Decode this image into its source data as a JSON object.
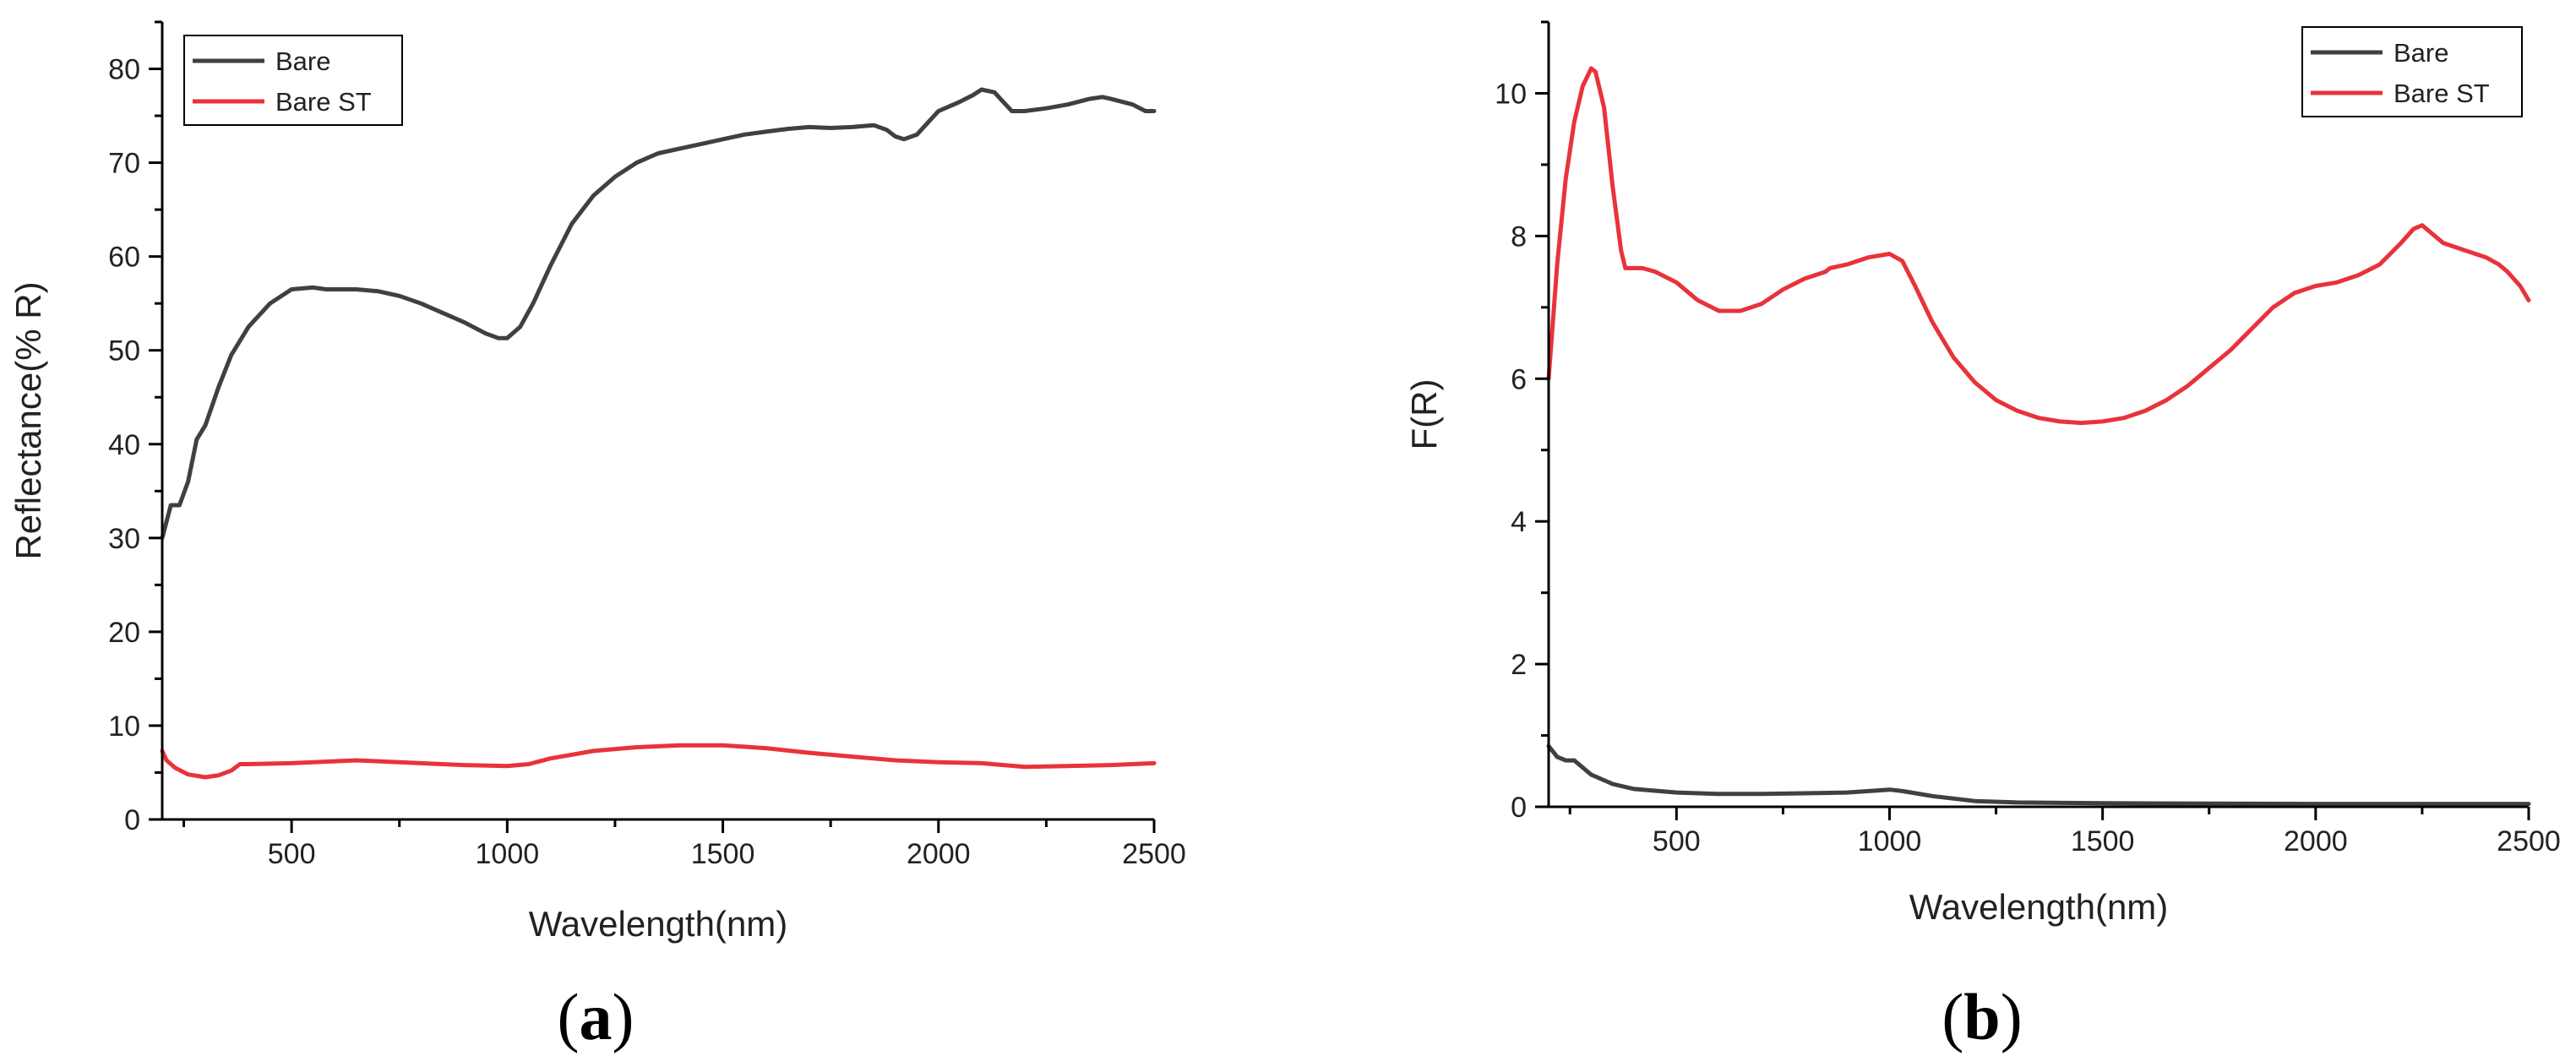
{
  "colors": {
    "bare": "#404040",
    "bare_st": "#e8333a",
    "axis": "#000000"
  },
  "chart_data": [
    {
      "id": "a",
      "type": "line",
      "panel_label": "a",
      "xlabel": "Wavelength(nm)",
      "ylabel": "Reflectance(% R)",
      "xlim": [
        200,
        2500
      ],
      "ylim": [
        0,
        85
      ],
      "xticks": [
        500,
        1000,
        1500,
        2000,
        2500
      ],
      "yticks": [
        0,
        10,
        20,
        30,
        40,
        50,
        60,
        70,
        80
      ],
      "legend_position": "top-left",
      "grid": false,
      "series": [
        {
          "name": "Bare",
          "color_key": "bare",
          "x": [
            200,
            220,
            240,
            260,
            280,
            300,
            330,
            360,
            400,
            450,
            500,
            550,
            580,
            650,
            700,
            750,
            800,
            850,
            900,
            950,
            980,
            1000,
            1030,
            1060,
            1100,
            1150,
            1200,
            1250,
            1300,
            1350,
            1400,
            1450,
            1500,
            1550,
            1600,
            1650,
            1700,
            1750,
            1800,
            1850,
            1880,
            1900,
            1920,
            1950,
            1980,
            2000,
            2050,
            2080,
            2100,
            2130,
            2150,
            2170,
            2200,
            2250,
            2300,
            2350,
            2380,
            2400,
            2450,
            2480,
            2500
          ],
          "y": [
            30,
            33.5,
            33.5,
            36,
            40.5,
            42,
            46,
            49.5,
            52.5,
            55,
            56.5,
            56.7,
            56.5,
            56.5,
            56.3,
            55.8,
            55,
            54,
            53,
            51.8,
            51.3,
            51.3,
            52.5,
            55,
            59,
            63.5,
            66.5,
            68.5,
            70,
            71,
            71.5,
            72,
            72.5,
            73,
            73.3,
            73.6,
            73.8,
            73.7,
            73.8,
            74,
            73.5,
            72.8,
            72.5,
            73,
            74.5,
            75.5,
            76.5,
            77.2,
            77.8,
            77.5,
            76.5,
            75.5,
            75.5,
            75.8,
            76.2,
            76.8,
            77,
            76.8,
            76.2,
            75.5,
            75.5
          ]
        },
        {
          "name": "Bare ST",
          "color_key": "bare_st",
          "x": [
            200,
            210,
            230,
            260,
            300,
            330,
            360,
            380,
            400,
            500,
            600,
            650,
            700,
            800,
            900,
            1000,
            1050,
            1100,
            1200,
            1300,
            1400,
            1500,
            1600,
            1700,
            1800,
            1900,
            2000,
            2100,
            2200,
            2300,
            2400,
            2500
          ],
          "y": [
            7.3,
            6.3,
            5.5,
            4.8,
            4.5,
            4.7,
            5.2,
            5.9,
            5.9,
            6.0,
            6.2,
            6.3,
            6.2,
            6.0,
            5.8,
            5.7,
            5.9,
            6.5,
            7.3,
            7.7,
            7.9,
            7.9,
            7.6,
            7.1,
            6.7,
            6.3,
            6.1,
            6.0,
            5.6,
            5.7,
            5.8,
            6.0
          ]
        }
      ]
    },
    {
      "id": "b",
      "type": "line",
      "panel_label": "b",
      "xlabel": "Wavelength(nm)",
      "ylabel": "F(R)",
      "xlim": [
        200,
        2500
      ],
      "ylim": [
        0,
        11
      ],
      "xticks": [
        500,
        1000,
        1500,
        2000,
        2500
      ],
      "yticks": [
        0,
        2,
        4,
        6,
        8,
        10
      ],
      "legend_position": "top-right",
      "grid": false,
      "series": [
        {
          "name": "Bare",
          "color_key": "bare",
          "x": [
            200,
            220,
            240,
            260,
            280,
            300,
            350,
            400,
            500,
            600,
            700,
            800,
            900,
            1000,
            1030,
            1100,
            1200,
            1300,
            1500,
            2000,
            2500
          ],
          "y": [
            0.85,
            0.7,
            0.65,
            0.65,
            0.55,
            0.45,
            0.32,
            0.25,
            0.2,
            0.18,
            0.18,
            0.19,
            0.2,
            0.24,
            0.22,
            0.15,
            0.08,
            0.06,
            0.05,
            0.04,
            0.04
          ]
        },
        {
          "name": "Bare ST",
          "color_key": "bare_st",
          "x": [
            200,
            220,
            240,
            260,
            280,
            300,
            310,
            330,
            350,
            370,
            380,
            390,
            420,
            450,
            500,
            550,
            600,
            650,
            700,
            750,
            800,
            850,
            860,
            900,
            950,
            1000,
            1030,
            1060,
            1100,
            1150,
            1200,
            1250,
            1300,
            1350,
            1400,
            1450,
            1500,
            1550,
            1600,
            1650,
            1700,
            1750,
            1800,
            1850,
            1900,
            1950,
            2000,
            2050,
            2100,
            2150,
            2200,
            2230,
            2250,
            2280,
            2300,
            2350,
            2400,
            2430,
            2450,
            2480,
            2500
          ],
          "y": [
            6.0,
            7.6,
            8.8,
            9.6,
            10.1,
            10.35,
            10.3,
            9.8,
            8.7,
            7.8,
            7.55,
            7.55,
            7.55,
            7.5,
            7.35,
            7.1,
            6.95,
            6.95,
            7.05,
            7.25,
            7.4,
            7.5,
            7.55,
            7.6,
            7.7,
            7.75,
            7.65,
            7.3,
            6.8,
            6.3,
            5.95,
            5.7,
            5.55,
            5.45,
            5.4,
            5.38,
            5.4,
            5.45,
            5.55,
            5.7,
            5.9,
            6.15,
            6.4,
            6.7,
            7.0,
            7.2,
            7.3,
            7.35,
            7.45,
            7.6,
            7.9,
            8.1,
            8.15,
            8.0,
            7.9,
            7.8,
            7.7,
            7.6,
            7.5,
            7.3,
            7.1
          ]
        }
      ]
    }
  ]
}
